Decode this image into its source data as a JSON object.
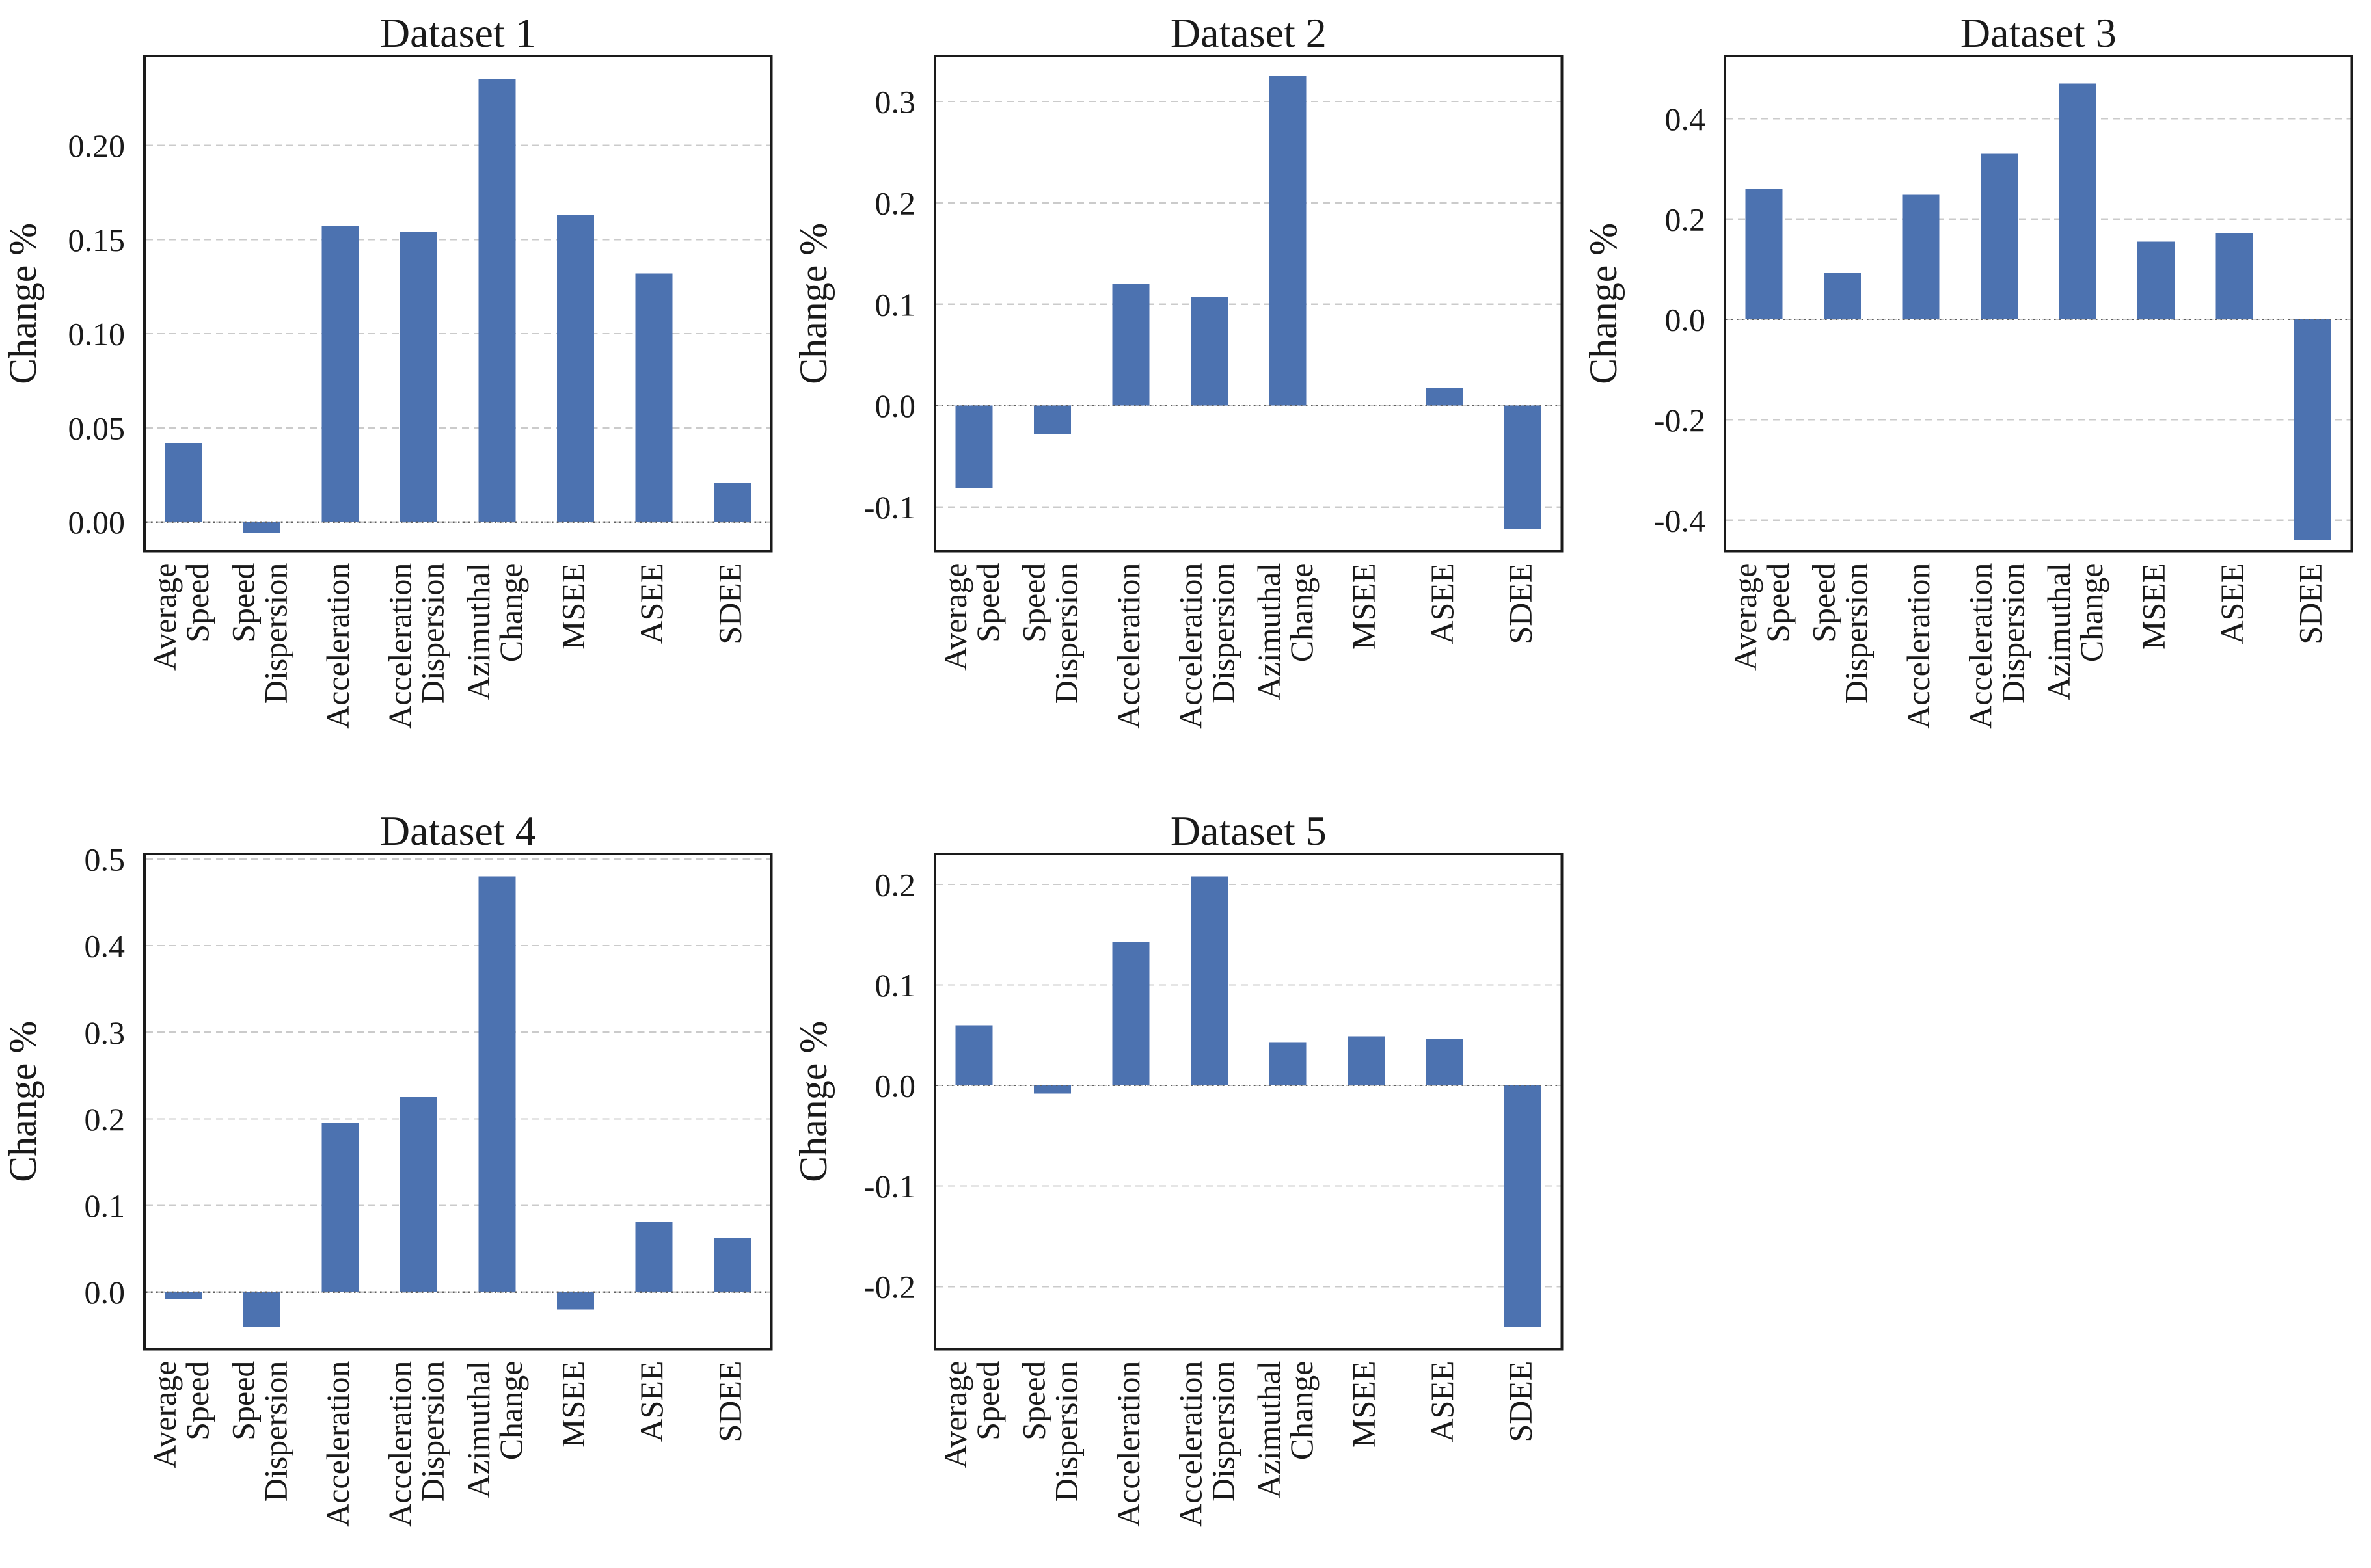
{
  "figure": {
    "background": "#ffffff",
    "rows": 2,
    "cols": 3
  },
  "style": {
    "bar_color": "#4C72B0",
    "grid_color": "#cbcbcb",
    "zero_line_color": "#5f5f5f",
    "spine_color": "#1a1a1a",
    "text_color": "#1a1a1a"
  },
  "chart_data": [
    {
      "type": "bar",
      "title": "Dataset 1",
      "ylabel": "Change %",
      "categories": [
        [
          "Average",
          "Speed"
        ],
        [
          "Speed",
          "Dispersion"
        ],
        [
          "Acceleration"
        ],
        [
          "Acceleration",
          "Dispersion"
        ],
        [
          "Azimuthal",
          "Change"
        ],
        [
          "MSEE"
        ],
        [
          "ASEE"
        ],
        [
          "SDEE"
        ]
      ],
      "values": [
        0.042,
        -0.006,
        0.157,
        0.154,
        0.235,
        0.163,
        0.132,
        0.021
      ],
      "yticks": [
        0.0,
        0.05,
        0.1,
        0.15,
        0.2
      ],
      "ytick_labels": [
        "0.00",
        "0.05",
        "0.10",
        "0.15",
        "0.20"
      ],
      "ylim": [
        -0.0155,
        0.2475
      ],
      "grid": "horizontal-dashed",
      "zero_line": "dotted",
      "x_tick_rotation": 90,
      "legend": false
    },
    {
      "type": "bar",
      "title": "Dataset 2",
      "ylabel": "Change %",
      "categories": [
        [
          "Average",
          "Speed"
        ],
        [
          "Speed",
          "Dispersion"
        ],
        [
          "Acceleration"
        ],
        [
          "Acceleration",
          "Dispersion"
        ],
        [
          "Azimuthal",
          "Change"
        ],
        [
          "MSEE"
        ],
        [
          "ASEE"
        ],
        [
          "SDEE"
        ]
      ],
      "values": [
        -0.081,
        -0.028,
        0.12,
        0.107,
        0.325,
        0.0,
        0.017,
        -0.122
      ],
      "yticks": [
        -0.1,
        0.0,
        0.1,
        0.2,
        0.3
      ],
      "ytick_labels": [
        "-0.1",
        "0.0",
        "0.1",
        "0.2",
        "0.3"
      ],
      "ylim": [
        -0.1436,
        0.3449
      ],
      "grid": "horizontal-dashed",
      "zero_line": "dotted",
      "x_tick_rotation": 90,
      "legend": false
    },
    {
      "type": "bar",
      "title": "Dataset 3",
      "ylabel": "Change %",
      "categories": [
        [
          "Average",
          "Speed"
        ],
        [
          "Speed",
          "Dispersion"
        ],
        [
          "Acceleration"
        ],
        [
          "Acceleration",
          "Dispersion"
        ],
        [
          "Azimuthal",
          "Change"
        ],
        [
          "MSEE"
        ],
        [
          "ASEE"
        ],
        [
          "SDEE"
        ]
      ],
      "values": [
        0.26,
        0.092,
        0.248,
        0.33,
        0.47,
        0.155,
        0.172,
        -0.44
      ],
      "yticks": [
        -0.4,
        -0.2,
        0.0,
        0.2,
        0.4
      ],
      "ytick_labels": [
        "-0.4",
        "-0.2",
        "0.0",
        "0.2",
        "0.4"
      ],
      "ylim": [
        -0.462,
        0.525
      ],
      "grid": "horizontal-dashed",
      "zero_line": "dotted",
      "x_tick_rotation": 90,
      "legend": false
    },
    {
      "type": "bar",
      "title": "Dataset 4",
      "ylabel": "Change %",
      "categories": [
        [
          "Average",
          "Speed"
        ],
        [
          "Speed",
          "Dispersion"
        ],
        [
          "Acceleration"
        ],
        [
          "Acceleration",
          "Dispersion"
        ],
        [
          "Azimuthal",
          "Change"
        ],
        [
          "MSEE"
        ],
        [
          "ASEE"
        ],
        [
          "SDEE"
        ]
      ],
      "values": [
        -0.008,
        -0.04,
        0.195,
        0.225,
        0.48,
        -0.02,
        0.081,
        0.063
      ],
      "yticks": [
        0.0,
        0.1,
        0.2,
        0.3,
        0.4,
        0.5
      ],
      "ytick_labels": [
        "0.0",
        "0.1",
        "0.2",
        "0.3",
        "0.4",
        "0.5"
      ],
      "ylim": [
        -0.066,
        0.506
      ],
      "grid": "horizontal-dashed",
      "zero_line": "dotted",
      "x_tick_rotation": 90,
      "legend": false
    },
    {
      "type": "bar",
      "title": "Dataset 5",
      "ylabel": "Change %",
      "categories": [
        [
          "Average",
          "Speed"
        ],
        [
          "Speed",
          "Dispersion"
        ],
        [
          "Acceleration"
        ],
        [
          "Acceleration",
          "Dispersion"
        ],
        [
          "Azimuthal",
          "Change"
        ],
        [
          "MSEE"
        ],
        [
          "ASEE"
        ],
        [
          "SDEE"
        ]
      ],
      "values": [
        0.06,
        -0.008,
        0.143,
        0.208,
        0.043,
        0.049,
        0.046,
        -0.24
      ],
      "yticks": [
        -0.2,
        -0.1,
        0.0,
        0.1,
        0.2
      ],
      "ytick_labels": [
        "-0.2",
        "-0.1",
        "0.0",
        "0.1",
        "0.2"
      ],
      "ylim": [
        -0.2624,
        0.2304
      ],
      "grid": "horizontal-dashed",
      "zero_line": "dotted",
      "x_tick_rotation": 90,
      "legend": false
    }
  ]
}
